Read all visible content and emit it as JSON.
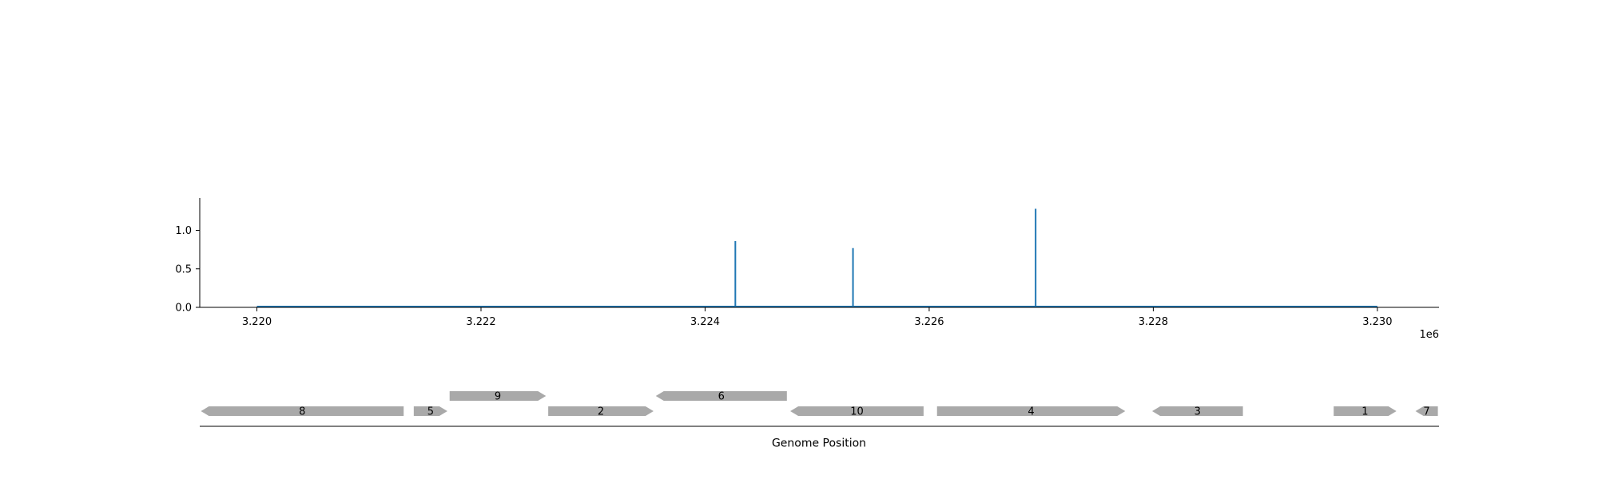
{
  "chart_data": [
    {
      "type": "line",
      "title": "",
      "xlabel": "",
      "ylabel": "",
      "x_offset_label": "1e6",
      "xlim": [
        3.21949,
        3.23055
      ],
      "ylim": [
        0,
        1.4
      ],
      "x_ticks": [
        3.22,
        3.222,
        3.224,
        3.226,
        3.228,
        3.23
      ],
      "x_tick_labels": [
        "3.220",
        "3.222",
        "3.224",
        "3.226",
        "3.228",
        "3.230"
      ],
      "y_ticks": [
        0.0,
        0.5,
        1.0
      ],
      "y_tick_labels": [
        "0.0",
        "0.5",
        "1.0"
      ],
      "grid": false,
      "line_color": "#1f77b4",
      "baseline": 0,
      "baseline_range": [
        3.22,
        3.23
      ],
      "x_scale": 1000000,
      "peaks": [
        {
          "x": 3224270,
          "y": 0.86
        },
        {
          "x": 3225320,
          "y": 0.77
        },
        {
          "x": 3226950,
          "y": 1.28
        }
      ]
    },
    {
      "type": "gene_track",
      "xlabel": "Genome Position",
      "feature_color": "#a9a9a9",
      "features": [
        {
          "label": "8",
          "start": 3219500,
          "end": 3221310,
          "strand": -1,
          "row": 0
        },
        {
          "label": "5",
          "start": 3221400,
          "end": 3221700,
          "strand": 1,
          "row": 0
        },
        {
          "label": "9",
          "start": 3221720,
          "end": 3222580,
          "strand": 1,
          "row": 1
        },
        {
          "label": "2",
          "start": 3222600,
          "end": 3223540,
          "strand": 1,
          "row": 0
        },
        {
          "label": "6",
          "start": 3223560,
          "end": 3224730,
          "strand": -1,
          "row": 1
        },
        {
          "label": "10",
          "start": 3224760,
          "end": 3225950,
          "strand": -1,
          "row": 0
        },
        {
          "label": "4",
          "start": 3226070,
          "end": 3227750,
          "strand": 1,
          "row": 0
        },
        {
          "label": "3",
          "start": 3227990,
          "end": 3228800,
          "strand": -1,
          "row": 0
        },
        {
          "label": "1",
          "start": 3229610,
          "end": 3230170,
          "strand": 1,
          "row": 0
        },
        {
          "label": "7",
          "start": 3230340,
          "end": 3230540,
          "strand": -1,
          "row": 0
        }
      ]
    }
  ]
}
